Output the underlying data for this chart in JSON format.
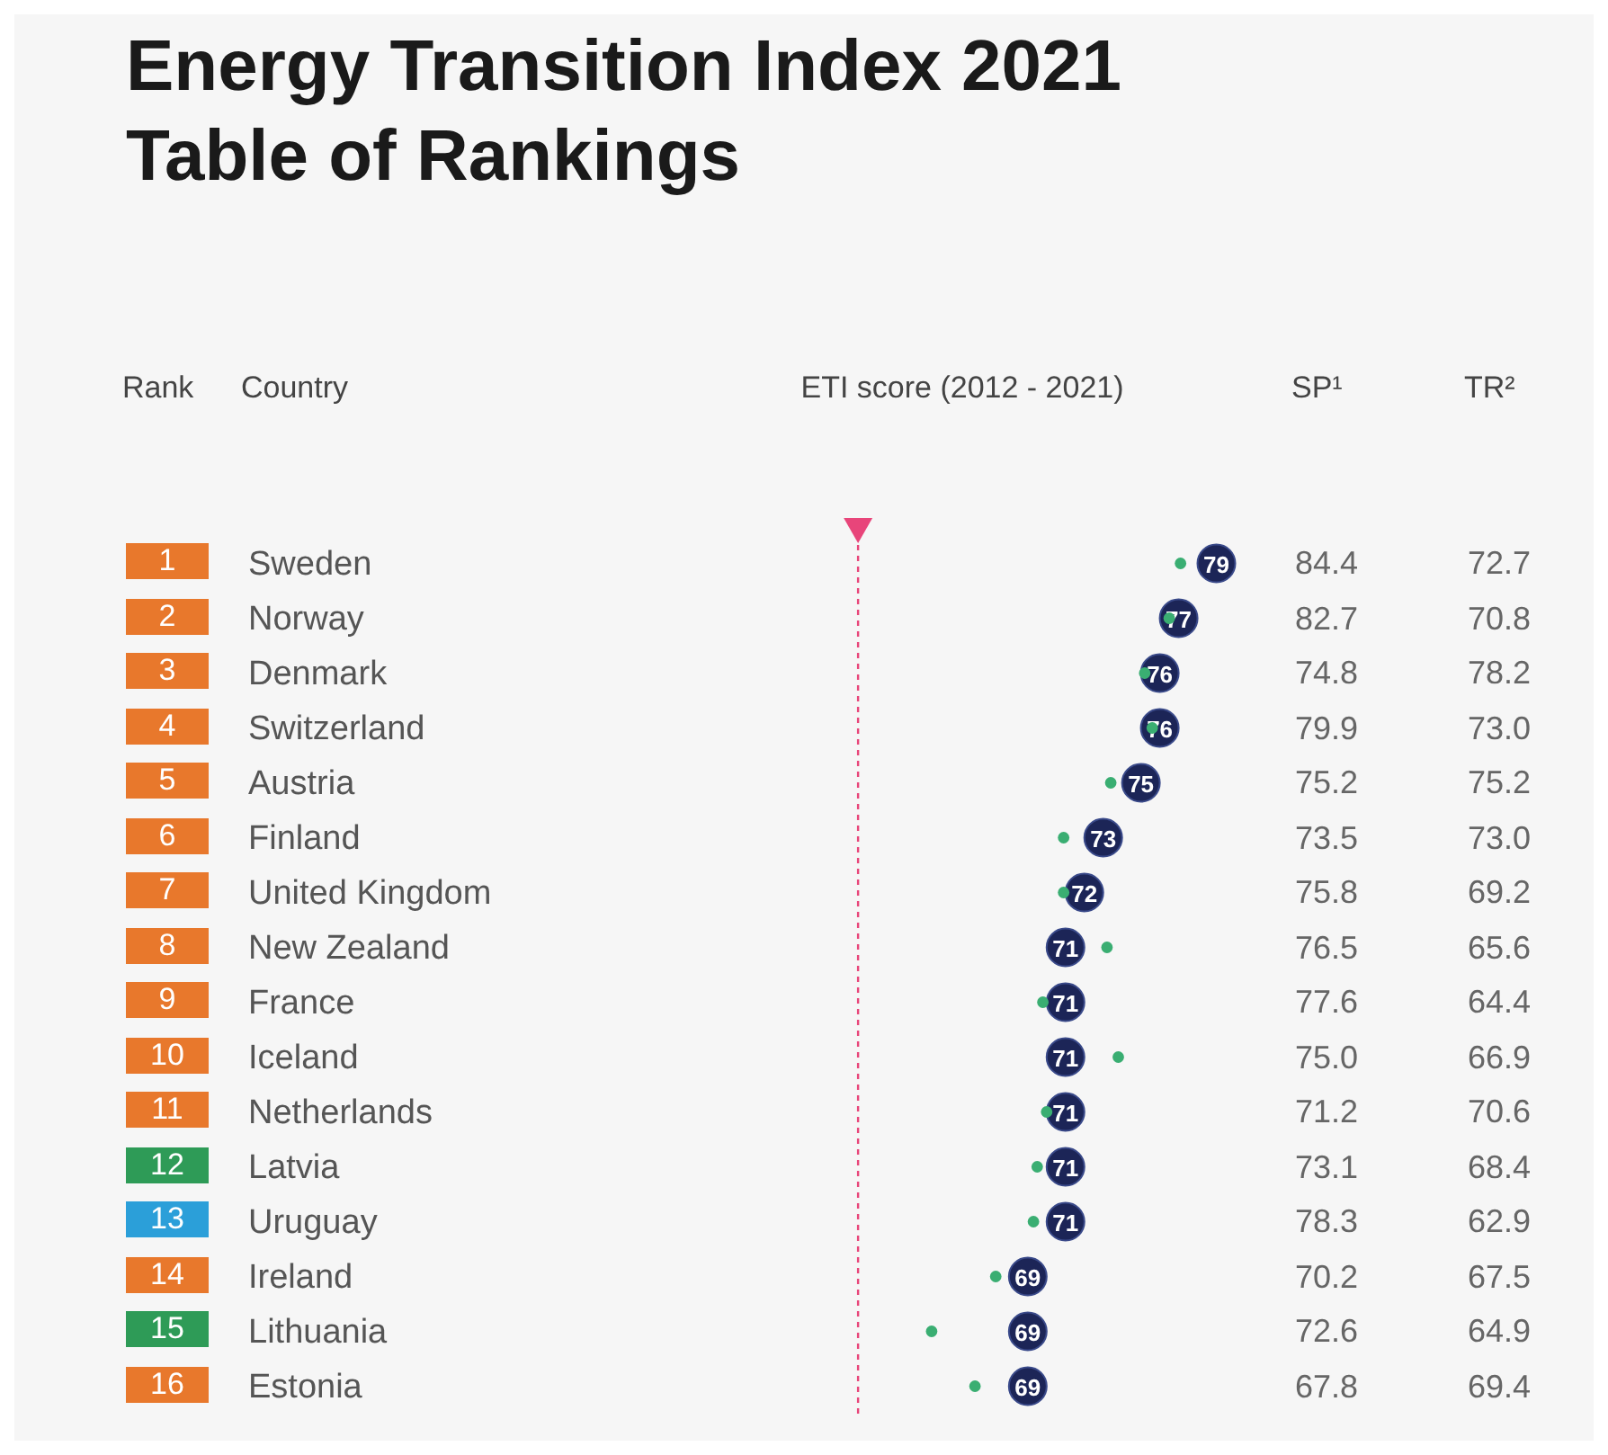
{
  "chart_data": [
    {
      "type": "other",
      "title": "Energy Transition Index 2021",
      "subtitle": "Table of Rankings",
      "xlabel": "Rank",
      "values": [
        1,
        2,
        3,
        4,
        5,
        6,
        7,
        8,
        9,
        10,
        11,
        12,
        13,
        14,
        15,
        16
      ],
      "colors": [
        "#e8782c",
        "#e8782c",
        "#e8782c",
        "#e8782c",
        "#e8782c",
        "#e8782c",
        "#e8782c",
        "#e8782c",
        "#e8782c",
        "#e8782c",
        "#e8782c",
        "#2e9b57",
        "#2b9fd9",
        "#e8782c",
        "#2e9b57",
        "#e8782c"
      ],
      "data_labels": true
    },
    {
      "type": "scatter",
      "orientation": "horizontal",
      "xlabel": "ETI score (2012 - 2021)",
      "ylabel": "Country",
      "categories": [
        "Sweden",
        "Norway",
        "Denmark",
        "Switzerland",
        "Austria",
        "Finland",
        "United Kingdom",
        "New Zealand",
        "France",
        "Iceland",
        "Netherlands",
        "Latvia",
        "Uruguay",
        "Ireland",
        "Lithuania",
        "Estonia"
      ],
      "tick_labels": "y",
      "marker": "circle",
      "series": [
        {
          "color": "#3aae72",
          "values": [
            77.1,
            76.5,
            75.2,
            75.6,
            73.4,
            70.9,
            70.9,
            73.2,
            69.8,
            73.8,
            70.0,
            69.5,
            69.3,
            67.3,
            63.9,
            66.2
          ]
        },
        {
          "color": "#1c2557",
          "values": [
            79,
            77,
            76,
            76,
            75,
            73,
            72,
            71,
            71,
            71,
            71,
            71,
            71,
            69,
            69,
            69
          ],
          "value_labels": [
            "79",
            "77",
            "76",
            "76",
            "75",
            "73",
            "72",
            "71",
            "71",
            "71",
            "71",
            "71",
            "71",
            "69",
            "69",
            "69"
          ]
        }
      ],
      "ref_lines": [
        {
          "axis": "x",
          "value": 60,
          "color": "#e8457a",
          "line_style": "dashed"
        }
      ]
    },
    {
      "type": "other",
      "xlabel": "SP¹",
      "values": [
        84.4,
        82.7,
        74.8,
        79.9,
        75.2,
        73.5,
        75.8,
        76.5,
        77.6,
        75.0,
        71.2,
        73.1,
        78.3,
        70.2,
        72.6,
        67.8
      ],
      "value_labels": [
        "84.4",
        "82.7",
        "74.8",
        "79.9",
        "75.2",
        "73.5",
        "75.8",
        "76.5",
        "77.6",
        "75.0",
        "71.2",
        "73.1",
        "78.3",
        "70.2",
        "72.6",
        "67.8"
      ],
      "data_labels": true
    },
    {
      "type": "other",
      "xlabel": "TR²",
      "values": [
        72.7,
        70.8,
        78.2,
        73.0,
        75.2,
        73.0,
        69.2,
        65.6,
        64.4,
        66.9,
        70.6,
        68.4,
        62.9,
        67.5,
        64.9,
        69.4
      ],
      "value_labels": [
        "72.7",
        "70.8",
        "78.2",
        "73.0",
        "75.2",
        "73.0",
        "69.2",
        "65.6",
        "64.4",
        "66.9",
        "70.6",
        "68.4",
        "62.9",
        "67.5",
        "64.9",
        "69.4"
      ],
      "data_labels": true
    }
  ]
}
